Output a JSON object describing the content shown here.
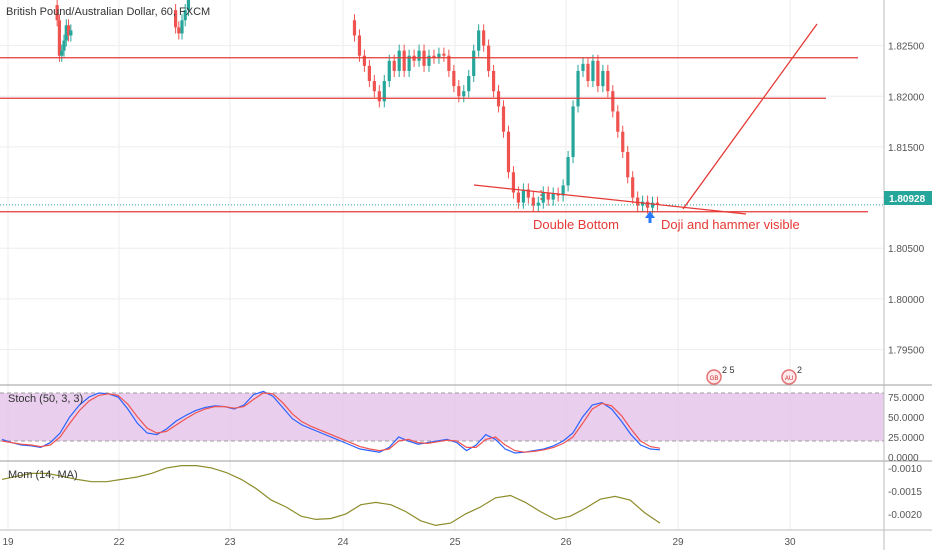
{
  "header": {
    "title": "British Pound/Australian Dollar, 60, FXCM"
  },
  "price_tag": {
    "value": "1.80928",
    "color": "#26a69a"
  },
  "colors": {
    "up": "#26a69a",
    "down": "#ef5350",
    "annotation": "#e53935",
    "arrow": "#2979ff",
    "stoch_k": "#2962ff",
    "stoch_d": "#ef5350",
    "stoch_band": "#e1bee7",
    "mom": "#8c8c2a"
  },
  "annotations": {
    "double_bottom": "Double Bottom",
    "doji_hammer": "Doji and hammer visible"
  },
  "event_badges": [
    {
      "label": "2 5"
    },
    {
      "label": "2"
    }
  ],
  "chart_data": [
    {
      "type": "candlestick",
      "title": "British Pound/Australian Dollar, 60, FXCM",
      "x_tick_labels": [
        "19",
        "22",
        "23",
        "24",
        "25",
        "26",
        "29",
        "30"
      ],
      "y_ticks": [
        1.795,
        1.8,
        1.805,
        1.81,
        1.815,
        1.82,
        1.825
      ],
      "y_tick_labels": [
        "1.79500",
        "1.80000",
        "1.80500",
        "1.81000",
        "1.81500",
        "1.82000",
        "1.82500"
      ],
      "ylim": [
        1.7915,
        1.8295
      ],
      "last_price": 1.80928,
      "grid": true,
      "horizontal_lines": [
        1.8238,
        1.8198,
        1.8086
      ],
      "series_path": [
        [
          1.829,
          1.8275,
          1.824,
          1.8245,
          1.8255,
          1.827,
          1.826,
          1.8265
        ],
        [
          1.8285,
          1.8268,
          1.8262,
          1.8275,
          1.8285,
          1.8295
        ],
        [
          1.8275,
          1.826,
          1.824,
          1.823,
          1.8215,
          1.8205,
          1.8195,
          1.8215,
          1.8235,
          1.8225,
          1.8245,
          1.8225,
          1.824,
          1.8235,
          1.8245,
          1.823,
          1.824,
          1.8238,
          1.8242,
          1.824,
          1.8225,
          1.821,
          1.82,
          1.8205,
          1.822,
          1.8245,
          1.8265,
          1.825,
          1.8225,
          1.8205,
          1.819,
          1.8165,
          1.8125,
          1.8105,
          1.8095,
          1.8108,
          1.81,
          1.8092,
          1.8095,
          1.8105,
          1.8098,
          1.8104,
          1.8102,
          1.8112,
          1.814,
          1.819,
          1.8225,
          1.8232,
          1.8215,
          1.8235,
          1.821,
          1.8225,
          1.8205,
          1.8185,
          1.8165,
          1.8145,
          1.812,
          1.81,
          1.8092,
          1.8096,
          1.809,
          1.8095,
          1.8093
        ]
      ]
    },
    {
      "type": "line",
      "title": "Stoch (50, 3, 3)",
      "y_ticks": [
        0,
        25,
        50,
        75
      ],
      "y_tick_labels": [
        "0.0000",
        "25.0000",
        "50.0000",
        "75.0000"
      ],
      "ylim": [
        -5,
        90
      ],
      "bands": [
        20,
        80
      ],
      "series": [
        {
          "values": [
            22,
            18,
            15,
            14,
            12,
            18,
            30,
            50,
            65,
            75,
            80,
            79,
            75,
            60,
            42,
            30,
            28,
            35,
            45,
            52,
            58,
            62,
            64,
            63,
            60,
            65,
            78,
            82,
            76,
            62,
            48,
            40,
            35,
            30,
            25,
            20,
            15,
            10,
            8,
            6,
            12,
            25,
            20,
            16,
            18,
            20,
            22,
            18,
            8,
            15,
            28,
            22,
            10,
            5,
            6,
            8,
            10,
            14,
            20,
            30,
            50,
            65,
            68,
            60,
            45,
            28,
            15,
            10,
            9
          ]
        },
        {
          "values": [
            20,
            18,
            16,
            15,
            13,
            15,
            25,
            42,
            58,
            70,
            77,
            79,
            77,
            66,
            50,
            36,
            30,
            32,
            40,
            48,
            55,
            60,
            63,
            63,
            61,
            63,
            72,
            80,
            79,
            68,
            54,
            44,
            38,
            33,
            28,
            23,
            18,
            13,
            10,
            8,
            10,
            20,
            22,
            18,
            17,
            19,
            21,
            20,
            12,
            12,
            22,
            25,
            15,
            8,
            6,
            7,
            9,
            12,
            17,
            25,
            42,
            60,
            67,
            64,
            52,
            35,
            20,
            13,
            11
          ]
        }
      ]
    },
    {
      "type": "line",
      "title": "Mom (14, MA)",
      "y_ticks": [
        -0.001,
        -0.0015,
        -0.002
      ],
      "y_tick_labels": [
        "-0.0010",
        "-0.0015",
        "-0.0020"
      ],
      "ylim": [
        -0.00235,
        -0.00085
      ],
      "series": [
        {
          "values": [
            -0.00125,
            -0.00118,
            -0.00112,
            -0.00112,
            -0.00118,
            -0.00125,
            -0.0013,
            -0.0013,
            -0.00125,
            -0.0012,
            -0.00112,
            -0.001,
            -0.00095,
            -0.00095,
            -0.001,
            -0.0011,
            -0.00125,
            -0.00145,
            -0.0017,
            -0.00185,
            -0.00205,
            -0.00212,
            -0.0021,
            -0.002,
            -0.0018,
            -0.00175,
            -0.0018,
            -0.00195,
            -0.00215,
            -0.00225,
            -0.0022,
            -0.002,
            -0.00185,
            -0.00165,
            -0.0016,
            -0.00175,
            -0.00195,
            -0.00212,
            -0.00205,
            -0.00188,
            -0.00168,
            -0.00162,
            -0.0017,
            -0.00198,
            -0.0022
          ]
        }
      ]
    }
  ]
}
